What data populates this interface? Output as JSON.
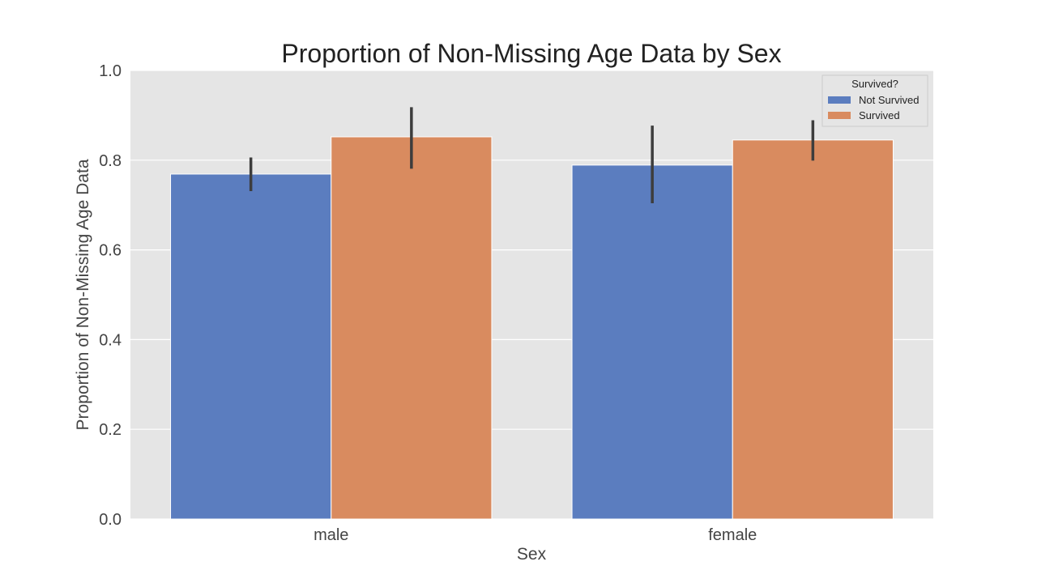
{
  "chart_data": {
    "type": "bar",
    "title": "Proportion of Non-Missing Age Data by Sex",
    "xlabel": "Sex",
    "ylabel": "Proportion of Non-Missing Age Data",
    "categories": [
      "male",
      "female"
    ],
    "ylim": [
      0,
      1.0
    ],
    "yticks": [
      0.0,
      0.2,
      0.4,
      0.6,
      0.8,
      1.0
    ],
    "ytick_labels": [
      "0.0",
      "0.2",
      "0.4",
      "0.6",
      "0.8",
      "1.0"
    ],
    "grid": true,
    "legend": {
      "title": "Survived?",
      "position": "top-right"
    },
    "series": [
      {
        "name": "Not Survived",
        "color": "#5b7dbf",
        "values": [
          0.769,
          0.789
        ],
        "error_low": [
          0.731,
          0.704
        ],
        "error_high": [
          0.806,
          0.877
        ]
      },
      {
        "name": "Survived",
        "color": "#d98b5f",
        "values": [
          0.852,
          0.845
        ],
        "error_low": [
          0.781,
          0.799
        ],
        "error_high": [
          0.918,
          0.889
        ]
      }
    ]
  }
}
